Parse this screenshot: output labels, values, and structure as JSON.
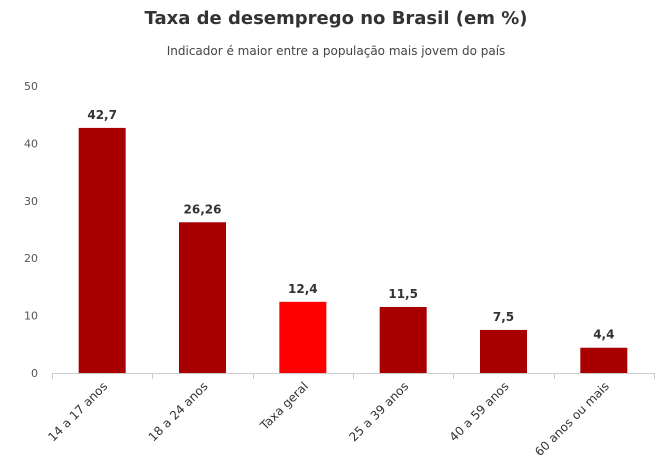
{
  "chart_data": {
    "type": "bar",
    "title": "Taxa de desemprego no Brasil (em %)",
    "subtitle": "Indicador é maior entre a população mais jovem do país",
    "categories": [
      "14 a 17 anos",
      "18 a 24 anos",
      "Taxa geral",
      "25 a 39 anos",
      "40 a 59 anos",
      "60 anos ou mais"
    ],
    "values": [
      42.7,
      26.26,
      12.4,
      11.5,
      7.5,
      4.4
    ],
    "value_labels": [
      "42,7",
      "26,26",
      "12,4",
      "11,5",
      "7,5",
      "4,4"
    ],
    "highlight_index": 2,
    "ylim": [
      0,
      50
    ],
    "yticks": [
      0,
      10,
      20,
      30,
      40,
      50
    ],
    "grid": false,
    "colors": {
      "bar": "#a80000",
      "highlight": "#ff0000",
      "axis": "#cccccc"
    }
  }
}
